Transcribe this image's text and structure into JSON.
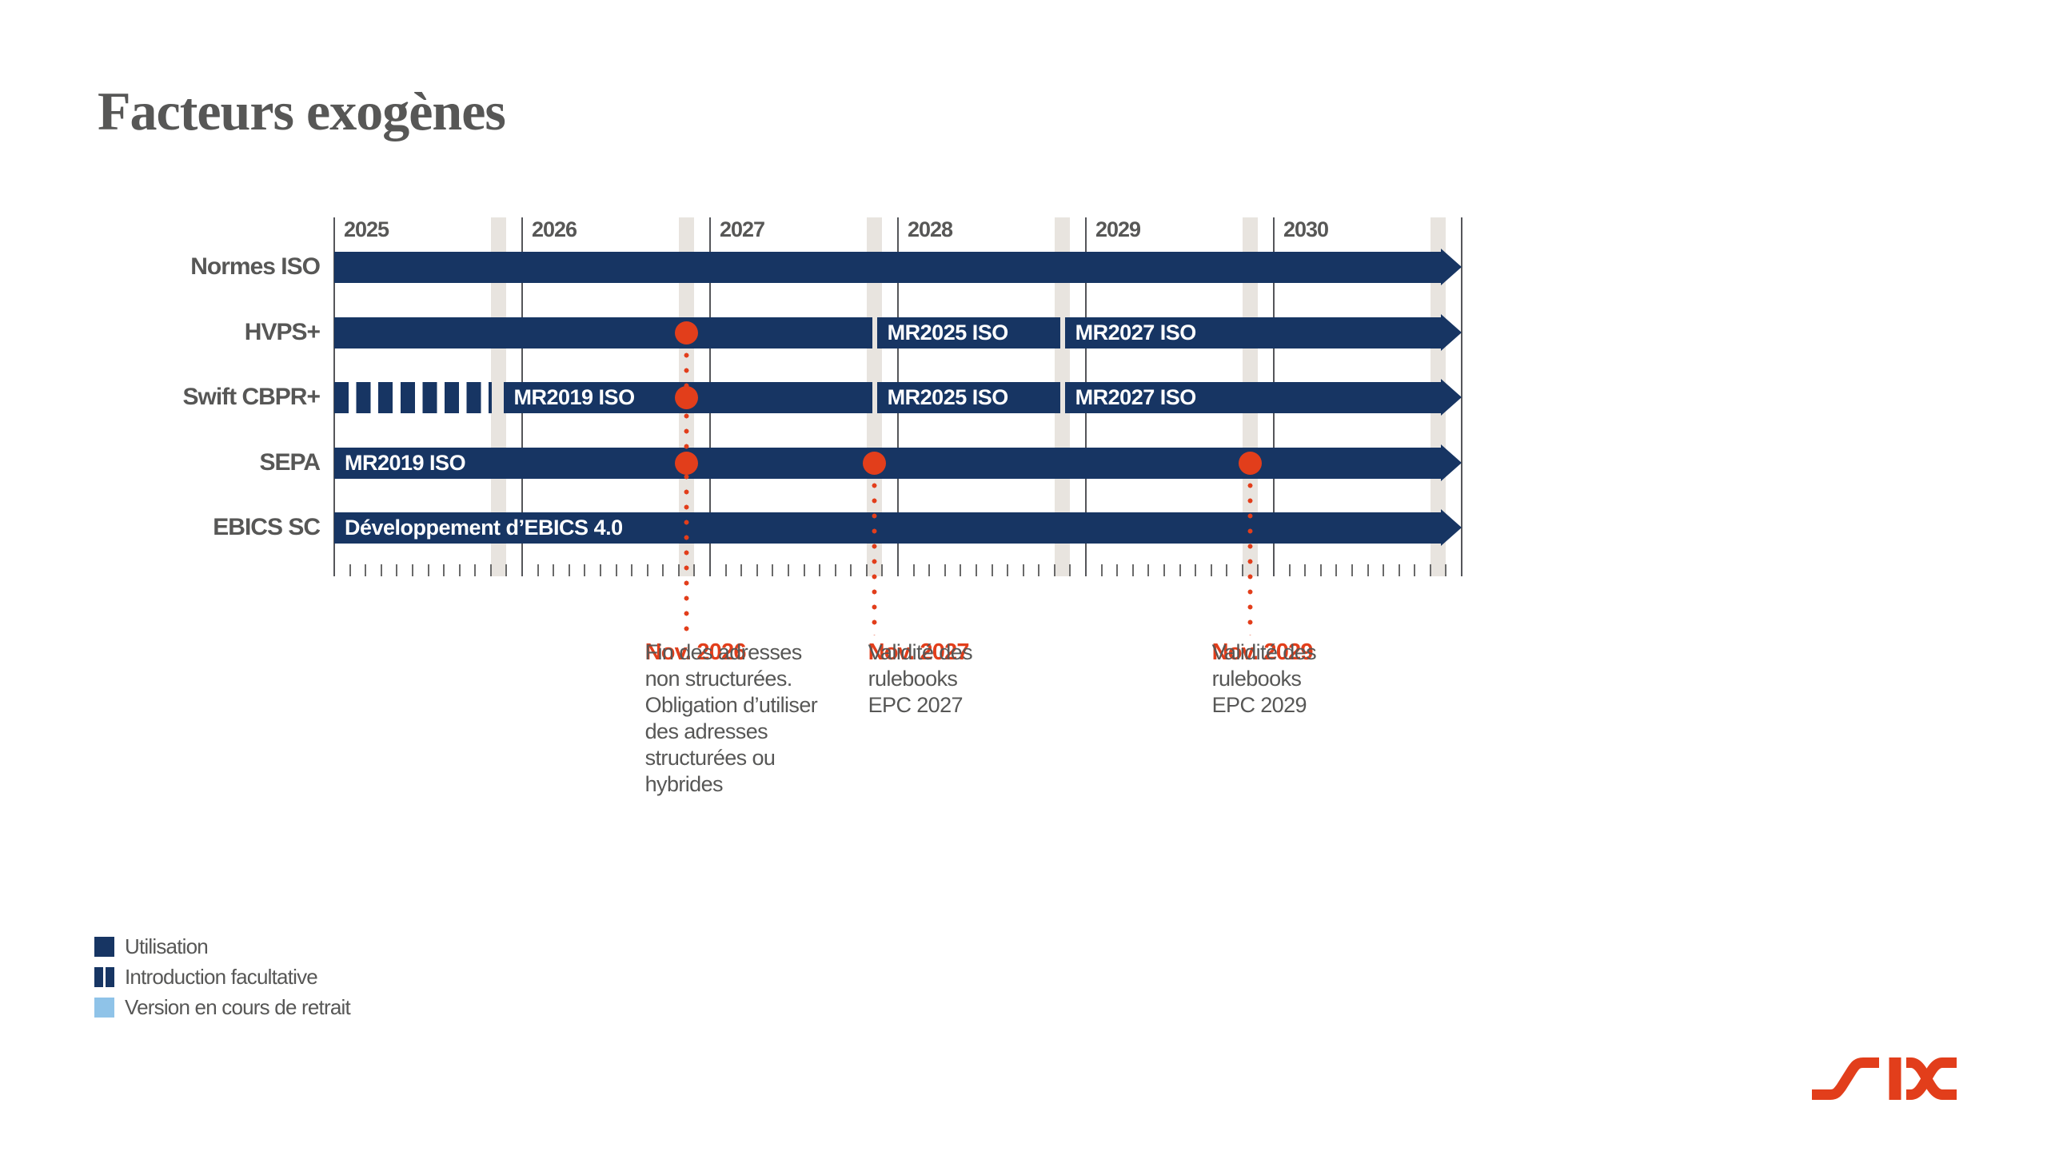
{
  "title": "Facteurs exogènes",
  "logo": {
    "brand": "SIX"
  },
  "colors": {
    "navy": "#173563",
    "red": "#E23E1B",
    "nov_band": "#E8E4DF",
    "text_gray": "#575756",
    "line_gray": "#55565A",
    "light_blue": "#8FC3E8",
    "bar_label_white": "#FFFFFF"
  },
  "chart_data": {
    "type": "timeline",
    "title": "Facteurs exogènes",
    "x_range": [
      2025,
      2031
    ],
    "year_labels": [
      "2025",
      "2026",
      "2027",
      "2028",
      "2029",
      "2030"
    ],
    "month_ticks": true,
    "nov_highlight_years": [
      2025,
      2026,
      2027,
      2028,
      2029,
      2030
    ],
    "rows": [
      {
        "label": "Normes ISO",
        "segments": [
          {
            "start": 2025,
            "end": 2031,
            "style": "solid",
            "label": "",
            "arrow": true
          }
        ],
        "milestones": []
      },
      {
        "label": "HVPS+",
        "segments": [
          {
            "start": 2025,
            "end": 2027.864,
            "style": "solid",
            "label": ""
          },
          {
            "start": 2027.888,
            "end": 2028.864,
            "style": "solid",
            "label": "MR2025 ISO"
          },
          {
            "start": 2028.888,
            "end": 2031,
            "style": "solid",
            "label": "MR2027 ISO",
            "arrow": true
          }
        ],
        "milestones": [
          2026.875
        ]
      },
      {
        "label": "Swift CBPR+",
        "segments": [
          {
            "start": 2025,
            "end": 2025.84,
            "style": "dashed",
            "label": ""
          },
          {
            "start": 2025.9,
            "end": 2027.864,
            "style": "solid",
            "label": "MR2019 ISO"
          },
          {
            "start": 2027.888,
            "end": 2028.864,
            "style": "solid",
            "label": "MR2025 ISO"
          },
          {
            "start": 2028.888,
            "end": 2031,
            "style": "solid",
            "label": "MR2027 ISO",
            "arrow": true
          }
        ],
        "milestones": [
          2026.875
        ]
      },
      {
        "label": "SEPA",
        "segments": [
          {
            "start": 2025,
            "end": 2031,
            "style": "solid",
            "label": "MR2019 ISO",
            "arrow": true
          }
        ],
        "milestones": [
          2026.875,
          2027.875,
          2029.875
        ]
      },
      {
        "label": "EBICS SC",
        "segments": [
          {
            "start": 2025,
            "end": 2031,
            "style": "solid",
            "label": "Développement d’EBICS 4.0",
            "arrow": true
          }
        ],
        "milestones": []
      }
    ],
    "annotations": [
      {
        "t": 2026.875,
        "heading": "Nov. 2026",
        "dx": -52,
        "body": "Fin des adresses\nnon structurées.\nObligation d’utiliser\ndes adresses\nstructurées ou\nhybrides"
      },
      {
        "t": 2027.875,
        "heading": "Nov. 2027",
        "dx": -8,
        "body": "Validité des\nrulebooks\nEPC 2027"
      },
      {
        "t": 2029.875,
        "heading": "Nov. 2029",
        "dx": -48,
        "body": "Validité des\nrulebooks\nEPC 2029"
      }
    ],
    "legend": [
      {
        "swatch": "solid",
        "label": "Utilisation"
      },
      {
        "swatch": "dashed",
        "label": "Introduction facultative"
      },
      {
        "swatch": "retiring",
        "label": "Version en cours de retrait"
      }
    ],
    "legend_position": "bottom-left",
    "grid": "vertical-years"
  }
}
